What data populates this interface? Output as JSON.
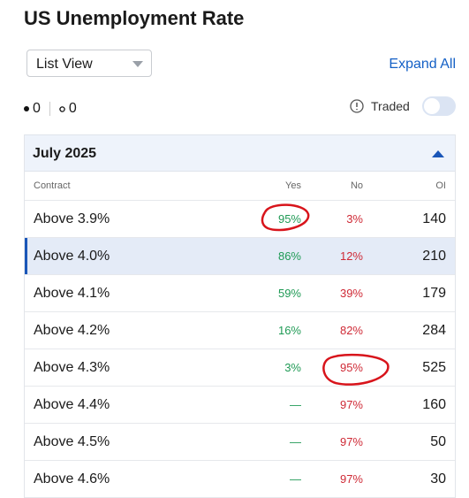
{
  "header": {
    "title": "US Unemployment Rate"
  },
  "controls": {
    "view": "List View",
    "expand": "Expand All",
    "filter_a": "0",
    "filter_b": "0",
    "traded": "Traded"
  },
  "table": {
    "group": "July 2025",
    "columns": [
      "Contract",
      "Yes",
      "No",
      "OI"
    ],
    "rows": [
      [
        "Above 3.9%",
        "95%",
        "3%",
        "140"
      ],
      [
        "Above 4.0%",
        "86%",
        "12%",
        "210"
      ],
      [
        "Above 4.1%",
        "59%",
        "39%",
        "179"
      ],
      [
        "Above 4.2%",
        "16%",
        "82%",
        "284"
      ],
      [
        "Above 4.3%",
        "3%",
        "95%",
        "525"
      ],
      [
        "Above 4.4%",
        "—",
        "97%",
        "160"
      ],
      [
        "Above 4.5%",
        "—",
        "97%",
        "50"
      ],
      [
        "Above 4.6%",
        "—",
        "97%",
        "30"
      ]
    ]
  }
}
